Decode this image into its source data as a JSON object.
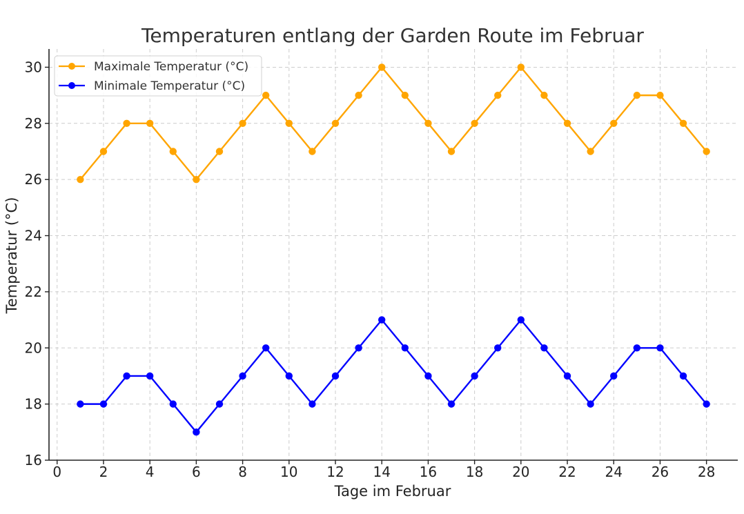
{
  "chart_data": {
    "type": "line",
    "title": "Temperaturen entlang der Garden Route im Februar",
    "xlabel": "Tage im Februar",
    "ylabel": "Temperatur (°C)",
    "xlim": [
      -0.35,
      29.35
    ],
    "ylim": [
      16,
      30.65
    ],
    "xticks": [
      0,
      2,
      4,
      6,
      8,
      10,
      12,
      14,
      16,
      18,
      20,
      22,
      24,
      26,
      28
    ],
    "yticks": [
      16,
      18,
      20,
      22,
      24,
      26,
      28,
      30
    ],
    "grid": true,
    "legend_position": "top-left",
    "x": [
      1,
      2,
      3,
      4,
      5,
      6,
      7,
      8,
      9,
      10,
      11,
      12,
      13,
      14,
      15,
      16,
      17,
      18,
      19,
      20,
      21,
      22,
      23,
      24,
      25,
      26,
      27,
      28
    ],
    "series": [
      {
        "name": "Maximale Temperatur (°C)",
        "color": "#FFA500",
        "values": [
          26,
          27,
          28,
          28,
          27,
          26,
          27,
          28,
          29,
          28,
          27,
          28,
          29,
          30,
          29,
          28,
          27,
          28,
          29,
          30,
          29,
          28,
          27,
          28,
          29,
          29,
          28,
          27
        ]
      },
      {
        "name": "Minimale Temperatur (°C)",
        "color": "#0000FF",
        "values": [
          18,
          18,
          19,
          19,
          18,
          17,
          18,
          19,
          20,
          19,
          18,
          19,
          20,
          21,
          20,
          19,
          18,
          19,
          20,
          21,
          20,
          19,
          18,
          19,
          20,
          20,
          19,
          18
        ]
      }
    ]
  }
}
